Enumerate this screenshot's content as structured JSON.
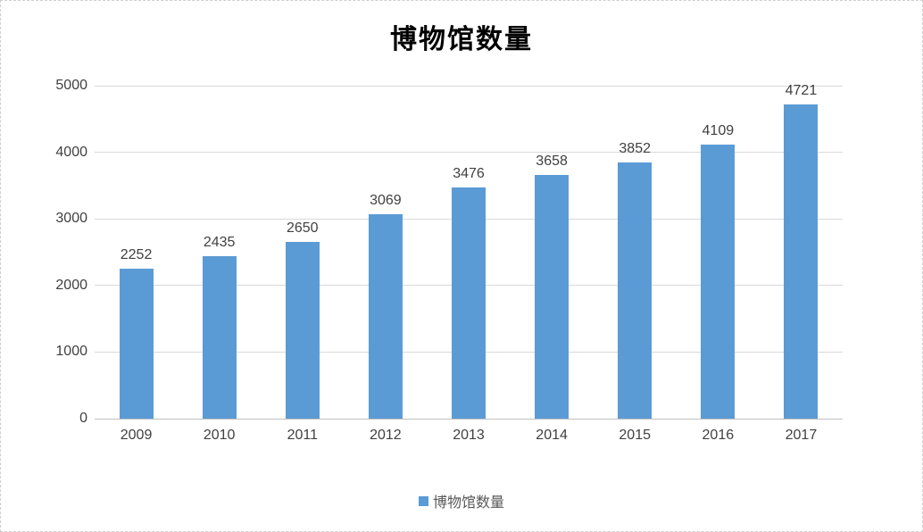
{
  "chart_data": {
    "type": "bar",
    "title": "博物馆数量",
    "series_name": "博物馆数量",
    "categories": [
      "2009",
      "2010",
      "2011",
      "2012",
      "2013",
      "2014",
      "2015",
      "2016",
      "2017"
    ],
    "values": [
      2252,
      2435,
      2650,
      3069,
      3476,
      3658,
      3852,
      4109,
      4721
    ],
    "yticks": [
      0,
      1000,
      2000,
      3000,
      4000,
      5000
    ],
    "ylim": [
      0,
      5000
    ],
    "grid": true,
    "legend_position": "bottom",
    "colors": {
      "bar": "#5b9bd5",
      "gridline": "#d9d9d9",
      "axis_line": "#bfbfbf",
      "tick_label": "#404040",
      "data_label": "#404040",
      "legend_text": "#595959",
      "title": "#000000"
    }
  }
}
